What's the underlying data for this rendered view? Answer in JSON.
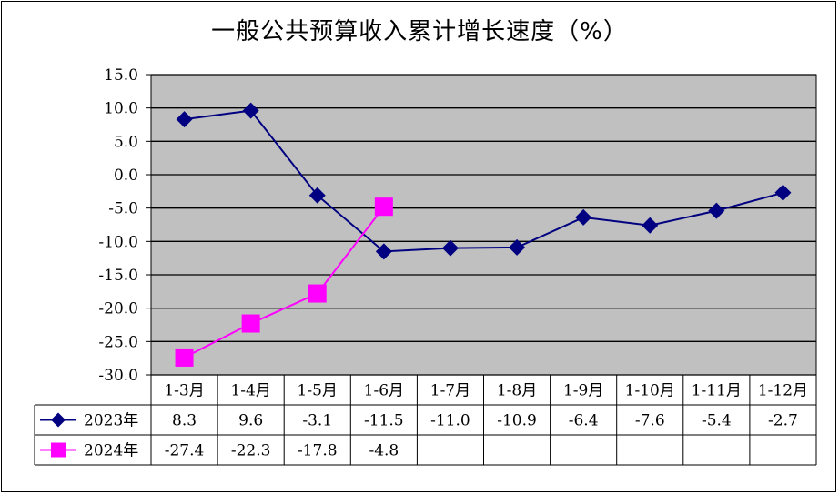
{
  "title": "一般公共预算收入累计增长速度（%）",
  "colors": {
    "plot_bg": "#c0c0c0",
    "series_2023": "#000080",
    "series_2024": "#ff00ff",
    "grid": "#000000"
  },
  "chart_data": {
    "type": "line",
    "title": "一般公共预算收入累计增长速度（%）",
    "categories": [
      "1-3月",
      "1-4月",
      "1-5月",
      "1-6月",
      "1-7月",
      "1-8月",
      "1-9月",
      "1-10月",
      "1-11月",
      "1-12月"
    ],
    "y_ticks": [
      "15.0",
      "10.0",
      "5.0",
      "0.0",
      "-5.0",
      "-10.0",
      "-15.0",
      "-20.0",
      "-25.0",
      "-30.0"
    ],
    "ylim": [
      -30,
      15
    ],
    "grid": true,
    "legend": "data-table",
    "series": [
      {
        "name": "2023年",
        "marker": "diamond",
        "values": [
          8.3,
          9.6,
          -3.1,
          -11.5,
          -11.0,
          -10.9,
          -6.4,
          -7.6,
          -5.4,
          -2.7
        ],
        "labels": [
          "8.3",
          "9.6",
          "-3.1",
          "-11.5",
          "-11.0",
          "-10.9",
          "-6.4",
          "-7.6",
          "-5.4",
          "-2.7"
        ]
      },
      {
        "name": "2024年",
        "marker": "square",
        "values": [
          -27.4,
          -22.3,
          -17.8,
          -4.8,
          null,
          null,
          null,
          null,
          null,
          null
        ],
        "labels": [
          "-27.4",
          "-22.3",
          "-17.8",
          "-4.8",
          "",
          "",
          "",
          "",
          "",
          ""
        ]
      }
    ]
  }
}
